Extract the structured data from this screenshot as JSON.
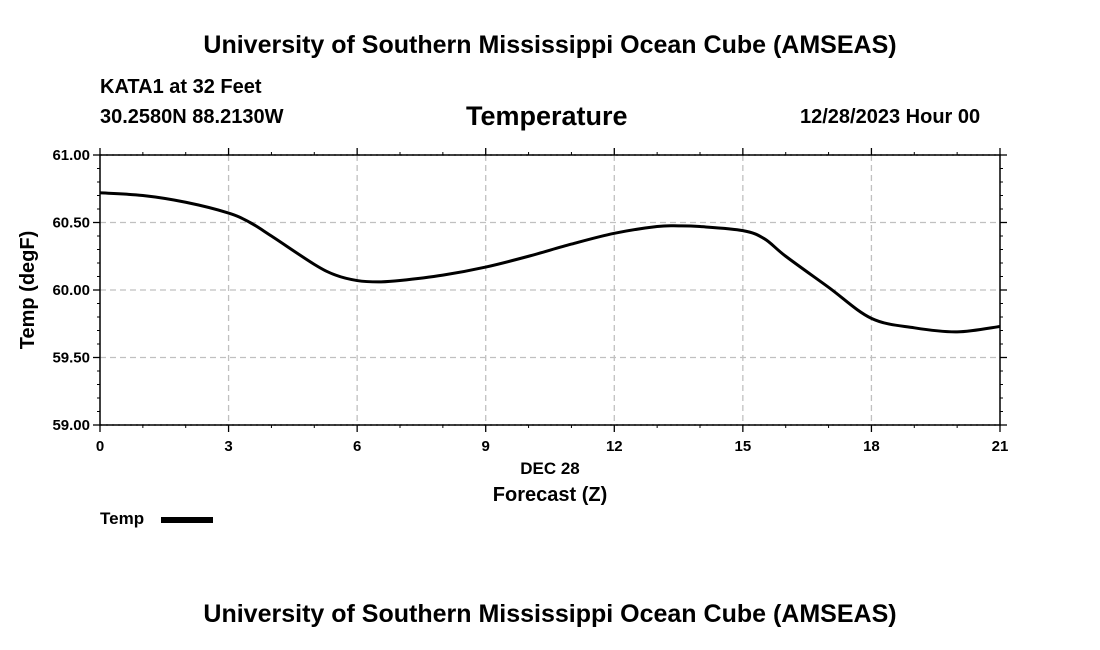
{
  "header": {
    "title_top": "University of Southern Mississippi Ocean Cube (AMSEAS)",
    "station": "KATA1 at 32 Feet",
    "coords": "30.2580N  88.2130W",
    "datetime": "12/28/2023 Hour 00"
  },
  "footer": {
    "title_bottom": "University of Southern Mississippi Ocean Cube (AMSEAS)"
  },
  "legend": {
    "label": "Temp"
  },
  "chart_data": {
    "type": "line",
    "title": "Temperature",
    "xlabel": "Forecast (Z)",
    "xsublabel": "DEC 28",
    "ylabel": "Temp (degF)",
    "xlim": [
      0,
      21
    ],
    "ylim": [
      59.0,
      61.0
    ],
    "xticks": [
      0,
      3,
      6,
      9,
      12,
      15,
      18,
      21
    ],
    "xtick_labels": [
      "0",
      "3",
      "6",
      "9",
      "12",
      "15",
      "18",
      "21"
    ],
    "yticks": [
      59.0,
      59.5,
      60.0,
      60.5,
      61.0
    ],
    "ytick_labels": [
      "59.00",
      "59.50",
      "60.00",
      "60.50",
      "61.00"
    ],
    "grid": true,
    "series": [
      {
        "name": "Temp",
        "color": "#000000",
        "x": [
          0,
          1,
          2,
          3,
          3.5,
          4,
          5,
          5.5,
          6,
          6.5,
          7,
          8,
          9,
          10,
          11,
          12,
          13,
          13.5,
          14,
          15,
          15.5,
          16,
          17,
          18,
          19,
          20,
          21
        ],
        "y": [
          60.72,
          60.7,
          60.65,
          60.57,
          60.5,
          60.4,
          60.19,
          60.11,
          60.07,
          60.06,
          60.07,
          60.11,
          60.17,
          60.25,
          60.34,
          60.42,
          60.47,
          60.475,
          60.47,
          60.44,
          60.38,
          60.25,
          60.02,
          59.79,
          59.72,
          59.69,
          59.73
        ]
      }
    ]
  }
}
